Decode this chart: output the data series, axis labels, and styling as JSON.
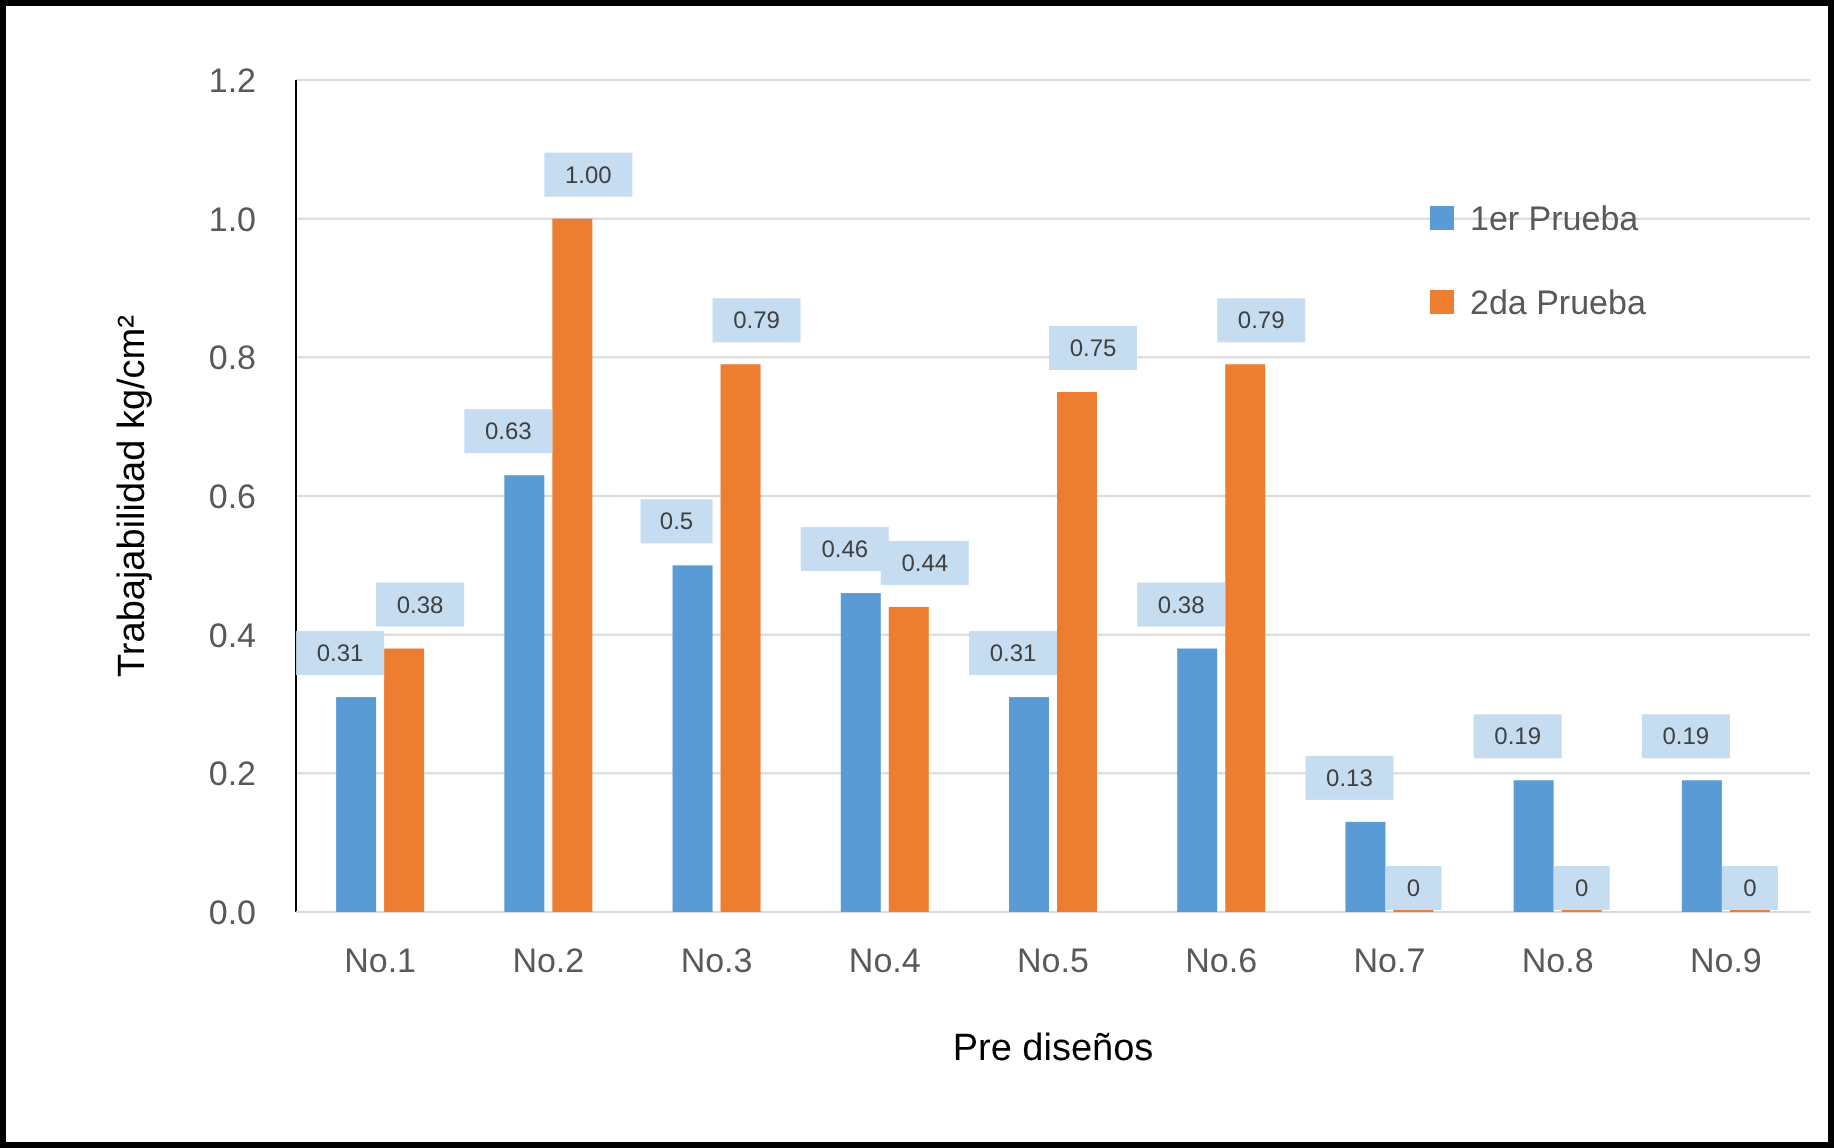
{
  "chart_data": {
    "type": "bar",
    "xlabel": "Pre diseños",
    "ylabel": "Trabajabilidad kg/cm²",
    "categories": [
      "No.1",
      "No.2",
      "No.3",
      "No.4",
      "No.5",
      "No.6",
      "No.7",
      "No.8",
      "No.9"
    ],
    "series": [
      {
        "name": "1er Prueba",
        "color": "#5b9bd5",
        "values": [
          0.31,
          0.63,
          0.5,
          0.46,
          0.31,
          0.38,
          0.13,
          0.19,
          0.19
        ],
        "value_labels": [
          "0.31",
          "0.63",
          "0.5",
          "0.46",
          "0.31",
          "0.38",
          "0.13",
          "0.19",
          "0.19"
        ]
      },
      {
        "name": "2da Prueba",
        "color": "#ed7d31",
        "values": [
          0.38,
          1.0,
          0.79,
          0.44,
          0.75,
          0.79,
          0,
          0,
          0
        ],
        "value_labels": [
          "0.38",
          "1.00",
          "0.79",
          "0.44",
          "0.75",
          "0.79",
          "0",
          "0",
          "0"
        ]
      }
    ],
    "ylim": [
      0,
      1.2
    ],
    "yticks": [
      {
        "value": 0,
        "label": "0.0"
      },
      {
        "value": 0.2,
        "label": "0.2"
      },
      {
        "value": 0.4,
        "label": "0.4"
      },
      {
        "value": 0.6,
        "label": "0.6"
      },
      {
        "value": 0.8,
        "label": "0.8"
      },
      {
        "value": 1,
        "label": "1.0"
      },
      {
        "value": 1.2,
        "label": "1.2"
      }
    ],
    "grid": "y",
    "legend": "top right"
  }
}
